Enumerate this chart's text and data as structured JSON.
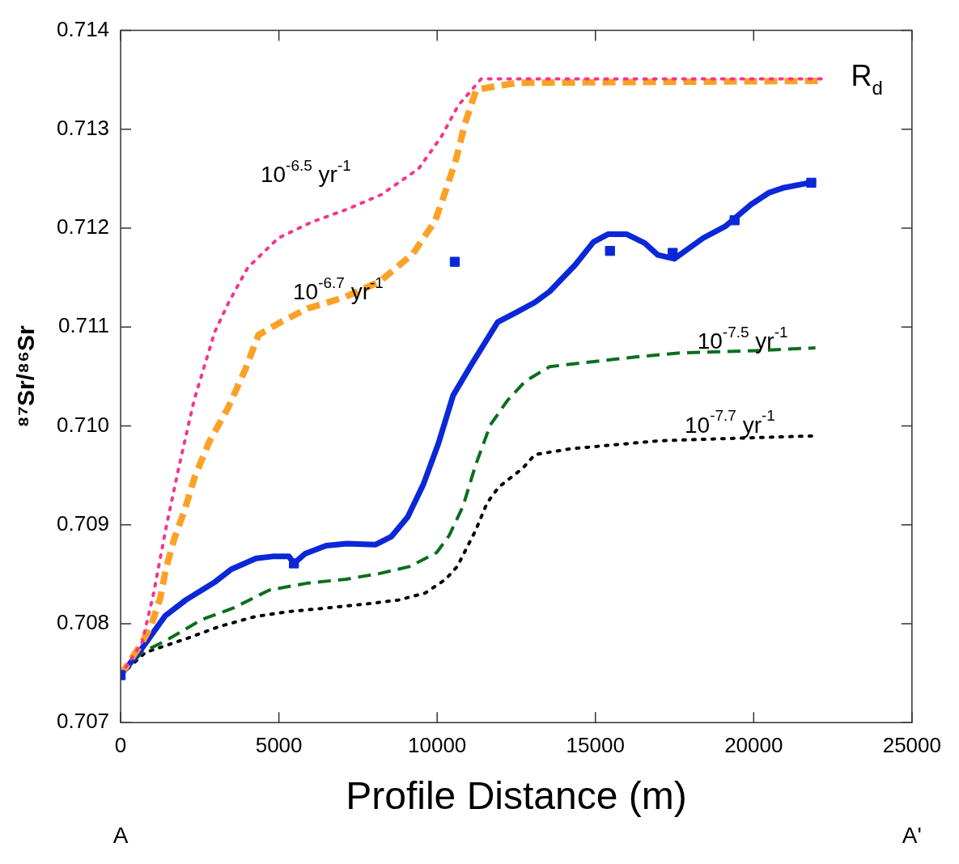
{
  "chart_data": {
    "type": "line",
    "xlabel": "Profile Distance (m)",
    "ylabel": "⁸⁷Sr/⁸⁶Sr",
    "xlim": [
      0,
      25000
    ],
    "xticks": [
      0,
      5000,
      10000,
      15000,
      20000,
      25000
    ],
    "ylim": [
      0.707,
      0.714
    ],
    "yticks": [
      0.707,
      0.708,
      0.709,
      {
        "value": 0.71,
        "label": "0.710"
      },
      0.711,
      0.712,
      0.713,
      0.714
    ],
    "grid": false,
    "legend": false,
    "series": [
      {
        "name": "10$^{-6.5}$ yr$^{-1}$",
        "color": "#f5358f",
        "line_style": "dotted",
        "x": [
          0,
          678,
          1043,
          1434,
          1851,
          2320,
          2972,
          3415,
          4015,
          4979,
          6022,
          7143,
          8238,
          9411,
          10141,
          10663,
          11393,
          22133
        ],
        "values": [
          0.70748,
          0.70781,
          0.70831,
          0.70897,
          0.7096,
          0.71026,
          0.71095,
          0.71125,
          0.7116,
          0.7119,
          0.71206,
          0.71219,
          0.71234,
          0.7126,
          0.71293,
          0.71324,
          0.71351,
          0.71351
        ]
      },
      {
        "name": "10$^{-6.7}$ yr$^{-1}$",
        "color": "#fca127",
        "line_style": "dashed",
        "x": [
          0,
          678,
          965,
          1251,
          1434,
          1695,
          2033,
          2346,
          2815,
          3389,
          3937,
          4354,
          5058,
          5918,
          7065,
          8186,
          9229,
          9932,
          10271,
          10610,
          10871,
          11236,
          11758,
          12540,
          22133
        ],
        "values": [
          0.70748,
          0.70781,
          0.70798,
          0.70826,
          0.70856,
          0.70886,
          0.70916,
          0.70949,
          0.70985,
          0.71018,
          0.71057,
          0.71092,
          0.71105,
          0.71119,
          0.7113,
          0.71146,
          0.71174,
          0.71207,
          0.71238,
          0.71271,
          0.71305,
          0.7134,
          0.71343,
          0.71347,
          0.71349
        ]
      },
      {
        "color": "#0a28d8",
        "line_style": "solid",
        "x": [
          0,
          626,
          1408,
          2060,
          2972,
          3493,
          4275,
          4797,
          5318,
          5475,
          5840,
          6491,
          7143,
          8055,
          8550,
          9070,
          9565,
          10037,
          10506,
          11080,
          11914,
          12514,
          13087,
          13556,
          14365,
          14938,
          15407,
          15981,
          16554,
          16971,
          17493,
          18405,
          19109,
          19917,
          20491,
          20960,
          21768
        ],
        "values": [
          0.70748,
          0.70773,
          0.70808,
          0.70824,
          0.70842,
          0.70855,
          0.70866,
          0.70868,
          0.70868,
          0.70861,
          0.70871,
          0.70879,
          0.70881,
          0.7088,
          0.70888,
          0.70908,
          0.70941,
          0.70982,
          0.71031,
          0.71062,
          0.71105,
          0.71115,
          0.71125,
          0.71136,
          0.71163,
          0.71186,
          0.71194,
          0.71194,
          0.71185,
          0.71173,
          0.71169,
          0.7119,
          0.71202,
          0.71224,
          0.71236,
          0.71241,
          0.71246
        ]
      },
      {
        "type": "scatter",
        "color": "#0a28d8",
        "marker": "square",
        "x": [
          0,
          5475,
          10558,
          15460,
          17441,
          19396,
          21820
        ],
        "values": [
          0.70748,
          0.70861,
          0.71166,
          0.71177,
          0.71175,
          0.71208,
          0.71246
        ]
      },
      {
        "name": "10$^{-7.5}$ yr$^{-1}$",
        "color": "#0c6e1e",
        "line_style": "dashed",
        "x": [
          0,
          678,
          1434,
          2555,
          3571,
          4693,
          5892,
          7117,
          8212,
          9151,
          9985,
          10376,
          10819,
          11210,
          11680,
          12227,
          12774,
          13556,
          16320,
          17728,
          20022,
          21951
        ],
        "values": [
          0.70748,
          0.70771,
          0.70783,
          0.70804,
          0.70816,
          0.70834,
          0.70841,
          0.70845,
          0.70851,
          0.70858,
          0.70872,
          0.70889,
          0.70919,
          0.7096,
          0.71001,
          0.71026,
          0.71045,
          0.7106,
          0.7107,
          0.71074,
          0.71076,
          0.71079
        ]
      },
      {
        "name": "10$^{-7.7}$ yr$^{-1}$",
        "color": "#000000",
        "line_style": "dotted",
        "x": [
          0,
          782,
          2086,
          3102,
          4223,
          5240,
          6543,
          7769,
          8786,
          9620,
          10272,
          10637,
          11210,
          11575,
          11940,
          12696,
          13087,
          14235,
          17024,
          18875,
          21951
        ],
        "values": [
          0.70748,
          0.70771,
          0.70785,
          0.70797,
          0.70807,
          0.70812,
          0.70816,
          0.7082,
          0.70824,
          0.70831,
          0.70845,
          0.70858,
          0.70894,
          0.70922,
          0.70938,
          0.70957,
          0.70971,
          0.70977,
          0.70985,
          0.70987,
          0.7099
        ]
      }
    ],
    "annotations": [
      "A",
      "R$_{d}$",
      "A'"
    ]
  }
}
